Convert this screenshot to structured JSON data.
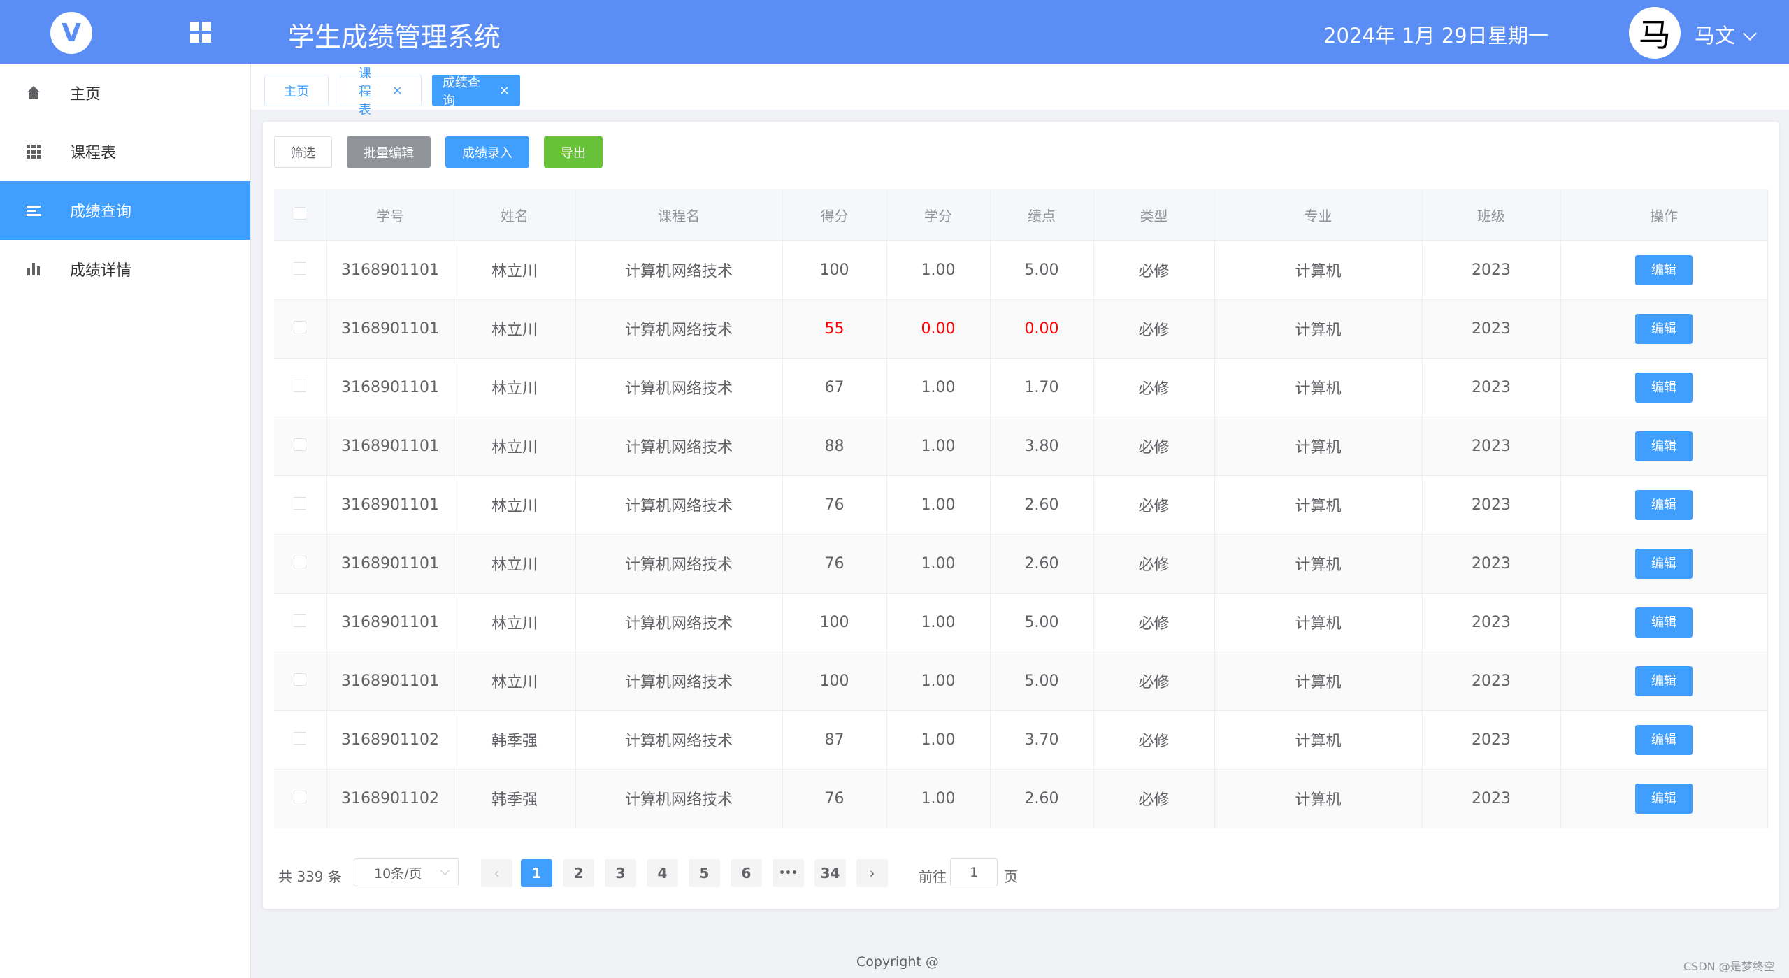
{
  "header": {
    "title": "学生成绩管理系统",
    "date": "2024年 1月 29日",
    "weekday": "星期一",
    "avatar_char": "马",
    "username": "马文"
  },
  "sidebar": {
    "items": [
      {
        "label": "主页",
        "icon": "home-icon"
      },
      {
        "label": "课程表",
        "icon": "grid-icon"
      },
      {
        "label": "成绩查询",
        "icon": "list-icon",
        "active": true
      },
      {
        "label": "成绩详情",
        "icon": "bar-chart-icon"
      }
    ]
  },
  "tabs": [
    {
      "label": "主页"
    },
    {
      "label": "课程表",
      "close": "×"
    },
    {
      "label": "成绩查询",
      "close": "×",
      "active": true
    }
  ],
  "toolbar": {
    "filter": "筛选",
    "batch_edit": "批量编辑",
    "entry": "成绩录入",
    "export": "导出"
  },
  "table": {
    "headers": [
      "学号",
      "姓名",
      "课程名",
      "得分",
      "学分",
      "绩点",
      "类型",
      "专业",
      "班级",
      "操作"
    ],
    "edit_label": "编辑",
    "rows": [
      [
        "3168901101",
        "林立川",
        "计算机网络技术",
        "100",
        "1.00",
        "5.00",
        "必修",
        "计算机",
        "2023"
      ],
      [
        "3168901101",
        "林立川",
        "计算机网络技术",
        "55",
        "0.00",
        "0.00",
        "必修",
        "计算机",
        "2023"
      ],
      [
        "3168901101",
        "林立川",
        "计算机网络技术",
        "67",
        "1.00",
        "1.70",
        "必修",
        "计算机",
        "2023"
      ],
      [
        "3168901101",
        "林立川",
        "计算机网络技术",
        "88",
        "1.00",
        "3.80",
        "必修",
        "计算机",
        "2023"
      ],
      [
        "3168901101",
        "林立川",
        "计算机网络技术",
        "76",
        "1.00",
        "2.60",
        "必修",
        "计算机",
        "2023"
      ],
      [
        "3168901101",
        "林立川",
        "计算机网络技术",
        "76",
        "1.00",
        "2.60",
        "必修",
        "计算机",
        "2023"
      ],
      [
        "3168901101",
        "林立川",
        "计算机网络技术",
        "100",
        "1.00",
        "5.00",
        "必修",
        "计算机",
        "2023"
      ],
      [
        "3168901101",
        "林立川",
        "计算机网络技术",
        "100",
        "1.00",
        "5.00",
        "必修",
        "计算机",
        "2023"
      ],
      [
        "3168901102",
        "韩季强",
        "计算机网络技术",
        "87",
        "1.00",
        "3.70",
        "必修",
        "计算机",
        "2023"
      ],
      [
        "3168901102",
        "韩季强",
        "计算机网络技术",
        "76",
        "1.00",
        "2.60",
        "必修",
        "计算机",
        "2023"
      ]
    ],
    "failing_row_index": 1
  },
  "pagination": {
    "total": "共 339 条",
    "page_size": "10条/页",
    "prev": "‹",
    "next": "›",
    "pages": [
      "1",
      "2",
      "3",
      "4",
      "5",
      "6",
      "•••",
      "34"
    ],
    "current": "1",
    "goto_label": "前往",
    "goto_value": "1",
    "page_suffix": "页"
  },
  "footer": {
    "copyright": "Copyright @",
    "watermark": "CSDN @是梦终空"
  },
  "colors": {
    "header_bg": "#5b8ef5",
    "primary": "#409eff",
    "success": "#67c23a",
    "info": "#909399",
    "danger": "#ff0000"
  }
}
